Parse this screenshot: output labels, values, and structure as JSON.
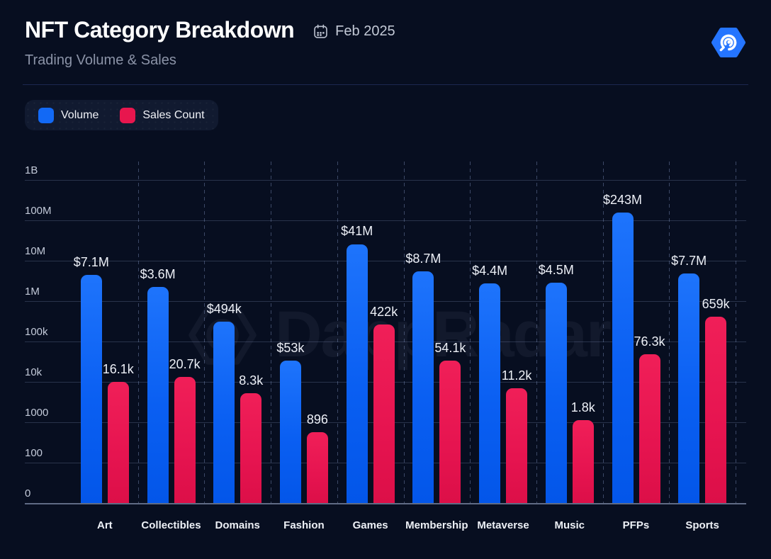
{
  "header": {
    "title": "NFT Category Breakdown",
    "subtitle": "Trading Volume & Sales",
    "date": "Feb 2025",
    "icons": [
      "calendar-icon",
      "dappradar-logo"
    ]
  },
  "legend": [
    {
      "label": "Volume",
      "color": "#1269f5"
    },
    {
      "label": "Sales Count",
      "color": "#e8164e"
    }
  ],
  "watermark": "DappRadar",
  "chart_data": {
    "type": "bar",
    "scale": "log",
    "title": "NFT Category Breakdown",
    "subtitle": "Trading Volume & Sales",
    "period": "Feb 2025",
    "categories": [
      "Art",
      "Collectibles",
      "Domains",
      "Fashion",
      "Games",
      "Membership",
      "Metaverse",
      "Music",
      "PFPs",
      "Sports"
    ],
    "series": [
      {
        "name": "Volume",
        "color": "#1269f5",
        "values": [
          7100000,
          3600000,
          494000,
          53000,
          41000000,
          8700000,
          4400000,
          4500000,
          243000000,
          7700000
        ],
        "labels": [
          "$7.1M",
          "$3.6M",
          "$494k",
          "$53k",
          "$41M",
          "$8.7M",
          "$4.4M",
          "$4.5M",
          "$243M",
          "$7.7M"
        ]
      },
      {
        "name": "Sales Count",
        "color": "#e8164e",
        "values": [
          16100,
          20700,
          8300,
          896,
          422000,
          54100,
          11200,
          1800,
          76300,
          659000
        ],
        "labels": [
          "16.1k",
          "20.7k",
          "8.3k",
          "896",
          "422k",
          "54.1k",
          "11.2k",
          "1.8k",
          "76.3k",
          "659k"
        ]
      }
    ],
    "y_ticks": [
      "1B",
      "100M",
      "10M",
      "1M",
      "100k",
      "10k",
      "1000",
      "100",
      "0"
    ],
    "ylim": [
      "0",
      "1B"
    ],
    "grid": "horizontal solid, vertical dashed between categories",
    "legend_position": "top-left"
  }
}
